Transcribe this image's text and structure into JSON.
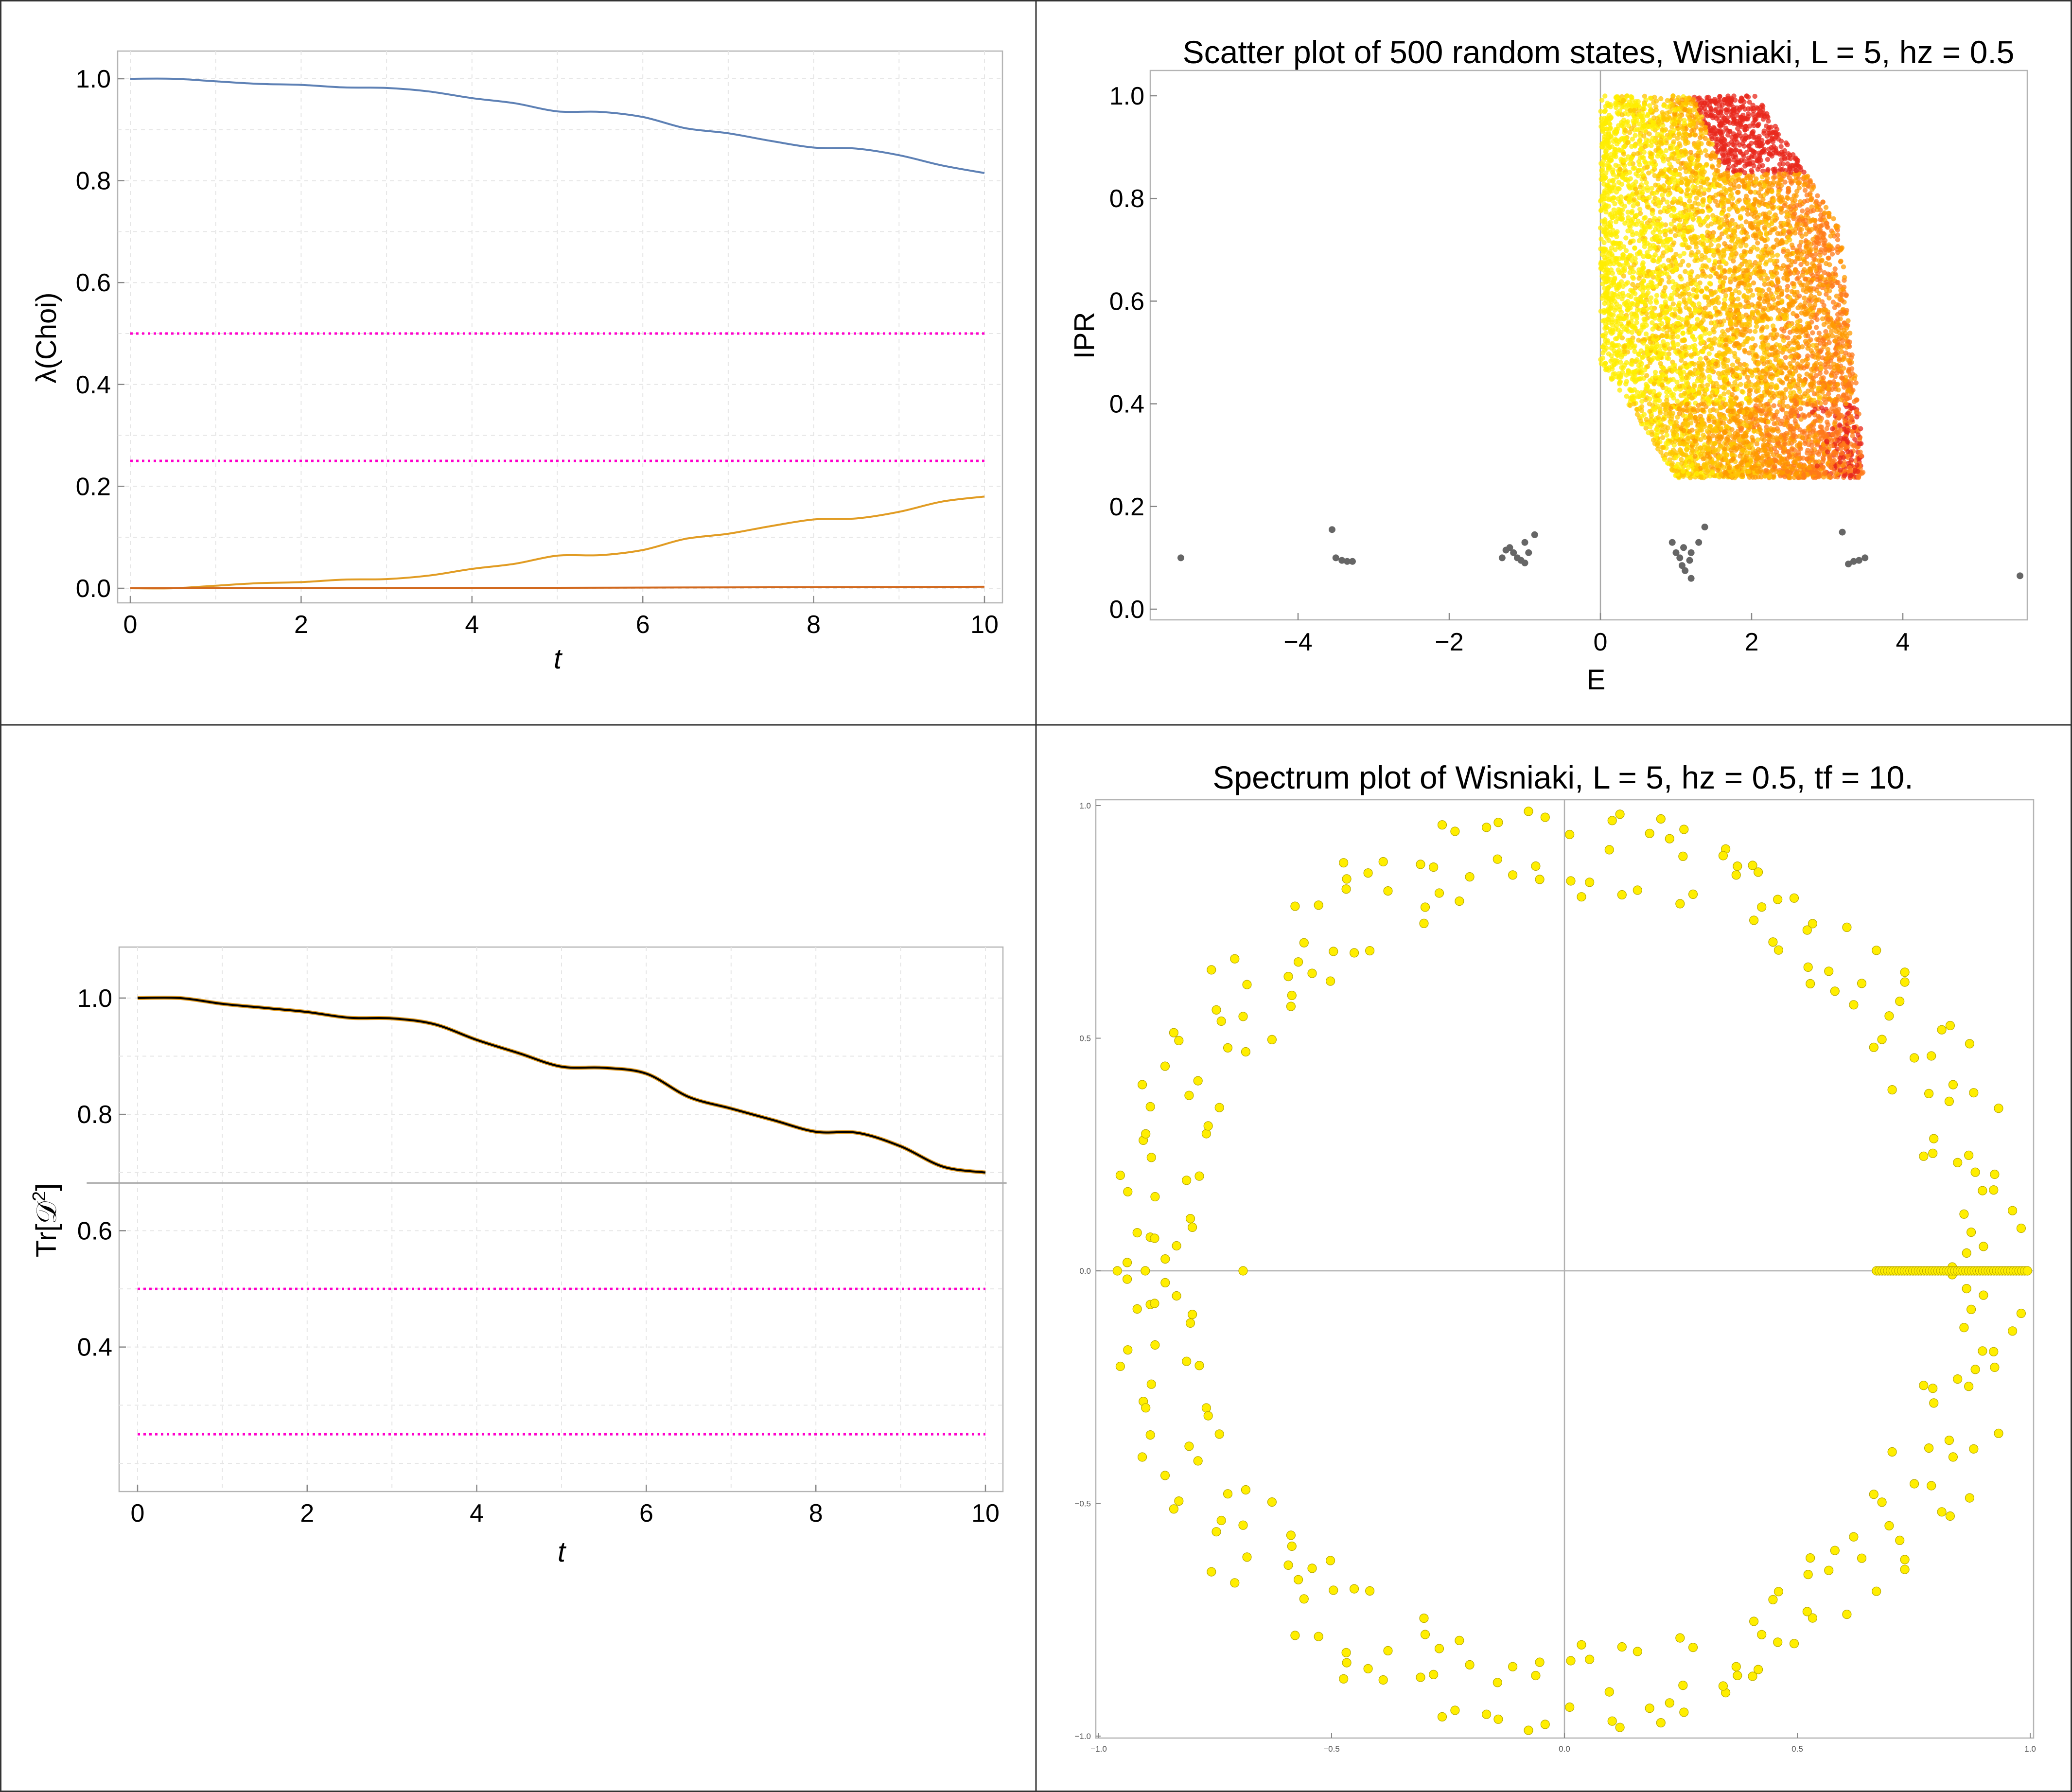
{
  "panels": {
    "p1": {
      "ylabel": "λ(Choi)",
      "xlabel": "t"
    },
    "p2": {
      "title": "Scatter plot of 500 random states, Wisniaki, L = 5, hz = 0.5",
      "ylabel": "IPR",
      "xlabel": "E"
    },
    "p3": {
      "ylabel_main": "Tr[𝒟",
      "ylabel_sup": "2",
      "ylabel_end": "]",
      "xlabel": "t"
    },
    "p4": {
      "title": "Spectrum plot of Wisniaki, L = 5, hz = 0.5, tf = 10."
    }
  },
  "colors": {
    "blue": "#5e81b5",
    "orange": "#e19c24",
    "darkorange": "#d2691e",
    "magenta": "#ff00cc",
    "black": "#000000",
    "gray": "#666666",
    "yellow": "#ffee00",
    "yellow_edge": "#b8a800",
    "red": "#e8281c"
  },
  "chart_data": [
    {
      "id": "p1",
      "type": "line",
      "xlabel": "t",
      "ylabel": "λ(Choi)",
      "xlim": [
        0,
        10
      ],
      "ylim": [
        0,
        1
      ],
      "xticks": [
        "0",
        "2",
        "4",
        "6",
        "8",
        "10"
      ],
      "yticks": [
        "0.0",
        "0.2",
        "0.4",
        "0.6",
        "0.8",
        "1.0"
      ],
      "grid": true,
      "series": [
        {
          "color": "blue",
          "style": "solid",
          "x": [
            0,
            0.5,
            1,
            1.5,
            2,
            2.5,
            3,
            3.5,
            4,
            4.5,
            5,
            5.5,
            6,
            6.5,
            7,
            7.5,
            8,
            8.5,
            9,
            9.5,
            10
          ],
          "y": [
            1.0,
            1.0,
            0.995,
            0.99,
            0.988,
            0.983,
            0.982,
            0.975,
            0.962,
            0.952,
            0.936,
            0.935,
            0.925,
            0.903,
            0.893,
            0.878,
            0.865,
            0.863,
            0.85,
            0.83,
            0.815
          ]
        },
        {
          "color": "orange",
          "style": "solid",
          "x": [
            0,
            0.5,
            1,
            1.5,
            2,
            2.5,
            3,
            3.5,
            4,
            4.5,
            5,
            5.5,
            6,
            6.5,
            7,
            7.5,
            8,
            8.5,
            9,
            9.5,
            10
          ],
          "y": [
            0.0,
            0.0,
            0.005,
            0.01,
            0.012,
            0.017,
            0.018,
            0.025,
            0.038,
            0.048,
            0.064,
            0.065,
            0.075,
            0.097,
            0.107,
            0.122,
            0.135,
            0.137,
            0.15,
            0.17,
            0.18
          ]
        },
        {
          "color": "darkorange",
          "style": "solid",
          "x": [
            0,
            5,
            10
          ],
          "y": [
            0.0,
            0.001,
            0.003
          ]
        },
        {
          "color": "magenta",
          "style": "dotted",
          "x": [
            0,
            10
          ],
          "y": [
            0.5,
            0.5
          ]
        },
        {
          "color": "magenta",
          "style": "dotted",
          "x": [
            0,
            10
          ],
          "y": [
            0.25,
            0.25
          ]
        }
      ]
    },
    {
      "id": "p2",
      "type": "scatter",
      "title": "Scatter plot of 500 random states, Wisniaki, L = 5, hz = 0.5",
      "xlabel": "E",
      "ylabel": "IPR",
      "xlim": [
        -5.8,
        5.8
      ],
      "ylim": [
        0,
        1.05
      ],
      "xticks": [
        "−4",
        "−2",
        "0",
        "2",
        "4"
      ],
      "yticks": [
        "0.0",
        "0.2",
        "0.4",
        "0.6",
        "0.8",
        "1.0"
      ],
      "cloud_colors": [
        "yellow",
        "orange",
        "red"
      ],
      "cloud_region": {
        "E_range": [
          0.0,
          3.48
        ],
        "IPR_range": [
          0.256,
          1.0
        ]
      },
      "gray_points": [
        [
          -5.55,
          0.1
        ],
        [
          -3.55,
          0.155
        ],
        [
          -3.5,
          0.1
        ],
        [
          -3.42,
          0.095
        ],
        [
          -3.35,
          0.093
        ],
        [
          -3.28,
          0.093
        ],
        [
          -1.3,
          0.1
        ],
        [
          -1.25,
          0.115
        ],
        [
          -1.2,
          0.12
        ],
        [
          -1.15,
          0.11
        ],
        [
          -1.1,
          0.1
        ],
        [
          -1.05,
          0.095
        ],
        [
          -1.0,
          0.09
        ],
        [
          -1.0,
          0.13
        ],
        [
          -0.95,
          0.11
        ],
        [
          -0.87,
          0.145
        ],
        [
          0.95,
          0.13
        ],
        [
          1.0,
          0.11
        ],
        [
          1.05,
          0.1
        ],
        [
          1.08,
          0.085
        ],
        [
          1.1,
          0.12
        ],
        [
          1.12,
          0.075
        ],
        [
          1.18,
          0.095
        ],
        [
          1.2,
          0.11
        ],
        [
          1.2,
          0.06
        ],
        [
          1.3,
          0.13
        ],
        [
          1.38,
          0.16
        ],
        [
          3.2,
          0.15
        ],
        [
          3.28,
          0.088
        ],
        [
          3.35,
          0.093
        ],
        [
          3.42,
          0.095
        ],
        [
          3.5,
          0.1
        ],
        [
          5.55,
          0.065
        ]
      ]
    },
    {
      "id": "p3",
      "type": "line",
      "xlabel": "t",
      "ylabel": "Tr[𝒟2]",
      "xlim": [
        0,
        10
      ],
      "ylim": [
        0.2,
        1.04
      ],
      "xticks": [
        "0",
        "2",
        "4",
        "6",
        "8",
        "10"
      ],
      "yticks": [
        "0.4",
        "0.6",
        "0.8",
        "1.0"
      ],
      "grid": true,
      "series": [
        {
          "color": "black",
          "style": "solid",
          "x": [
            0,
            0.5,
            1,
            1.5,
            2,
            2.5,
            3,
            3.5,
            4,
            4.5,
            5,
            5.5,
            6,
            6.5,
            7,
            7.5,
            8,
            8.5,
            9,
            9.5,
            10
          ],
          "y": [
            1.0,
            1.0,
            0.99,
            0.983,
            0.976,
            0.966,
            0.965,
            0.955,
            0.928,
            0.905,
            0.882,
            0.88,
            0.87,
            0.83,
            0.81,
            0.79,
            0.77,
            0.768,
            0.745,
            0.71,
            0.7
          ]
        },
        {
          "color": "gray",
          "style": "thin",
          "x": [
            -0.6,
            10.25
          ],
          "y": [
            0.682,
            0.682
          ]
        },
        {
          "color": "magenta",
          "style": "dotted",
          "x": [
            0,
            10
          ],
          "y": [
            0.5,
            0.5
          ]
        },
        {
          "color": "magenta",
          "style": "dotted",
          "x": [
            0,
            10
          ],
          "y": [
            0.25,
            0.25
          ]
        }
      ]
    },
    {
      "id": "p4",
      "type": "scatter",
      "title": "Spectrum plot of Wisniaki, L = 5, hz = 0.5, tf = 10.",
      "xlim": [
        -1.0,
        1.0
      ],
      "ylim": [
        -1.0,
        1.0
      ],
      "xticks": [
        "−1.0",
        "−0.5",
        "0.0",
        "0.5",
        "1.0"
      ],
      "yticks": [
        "1.0",
        "0.5",
        "0.0",
        "−0.5",
        "−1.0"
      ],
      "marker_color": "yellow",
      "unit_circle_points": 140,
      "real_axis_cluster": {
        "x_range": [
          0.67,
          1.0
        ],
        "y": 0
      }
    }
  ]
}
